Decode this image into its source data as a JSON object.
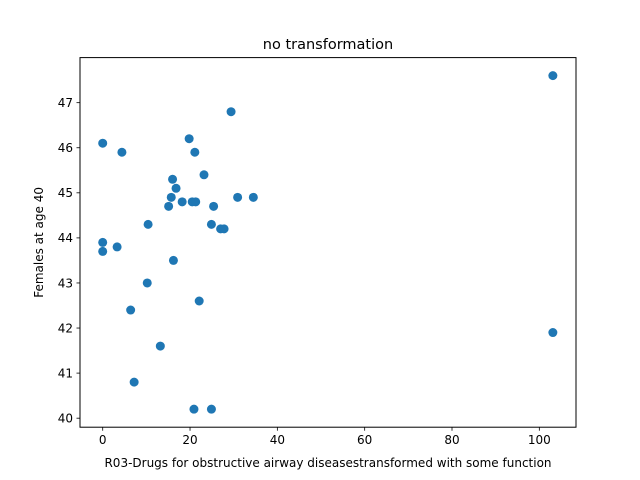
{
  "chart_data": {
    "type": "scatter",
    "title": "no transformation",
    "xlabel": "R03-Drugs for obstructive airway diseasestransformed with some function",
    "ylabel": "Females at age 40",
    "xlim": [
      -5.2,
      108.4
    ],
    "ylim": [
      39.8,
      48.0
    ],
    "xticks": [
      0,
      20,
      40,
      60,
      80,
      100
    ],
    "yticks": [
      40,
      41,
      42,
      43,
      44,
      45,
      46,
      47
    ],
    "grid": false,
    "marker_color": "#1f77b4",
    "points": [
      {
        "x": 0.0,
        "y": 46.1
      },
      {
        "x": 4.4,
        "y": 45.9
      },
      {
        "x": 0.0,
        "y": 43.9
      },
      {
        "x": 0.0,
        "y": 43.7
      },
      {
        "x": 3.3,
        "y": 43.8
      },
      {
        "x": 6.4,
        "y": 42.4
      },
      {
        "x": 7.2,
        "y": 40.8
      },
      {
        "x": 10.2,
        "y": 43.0
      },
      {
        "x": 10.4,
        "y": 44.3
      },
      {
        "x": 13.2,
        "y": 41.6
      },
      {
        "x": 15.1,
        "y": 44.7
      },
      {
        "x": 15.7,
        "y": 44.9
      },
      {
        "x": 16.0,
        "y": 45.3
      },
      {
        "x": 16.2,
        "y": 43.5
      },
      {
        "x": 16.8,
        "y": 45.1
      },
      {
        "x": 18.2,
        "y": 44.8
      },
      {
        "x": 19.8,
        "y": 46.2
      },
      {
        "x": 20.5,
        "y": 44.8
      },
      {
        "x": 21.1,
        "y": 45.9
      },
      {
        "x": 21.3,
        "y": 44.8
      },
      {
        "x": 20.9,
        "y": 40.2
      },
      {
        "x": 22.1,
        "y": 42.6
      },
      {
        "x": 23.2,
        "y": 45.4
      },
      {
        "x": 24.9,
        "y": 44.3
      },
      {
        "x": 25.4,
        "y": 44.7
      },
      {
        "x": 24.9,
        "y": 40.2
      },
      {
        "x": 27.0,
        "y": 44.2
      },
      {
        "x": 27.8,
        "y": 44.2
      },
      {
        "x": 29.4,
        "y": 46.8
      },
      {
        "x": 30.9,
        "y": 44.9
      },
      {
        "x": 34.5,
        "y": 44.9
      },
      {
        "x": 103.1,
        "y": 47.6
      },
      {
        "x": 103.1,
        "y": 41.9
      }
    ]
  }
}
